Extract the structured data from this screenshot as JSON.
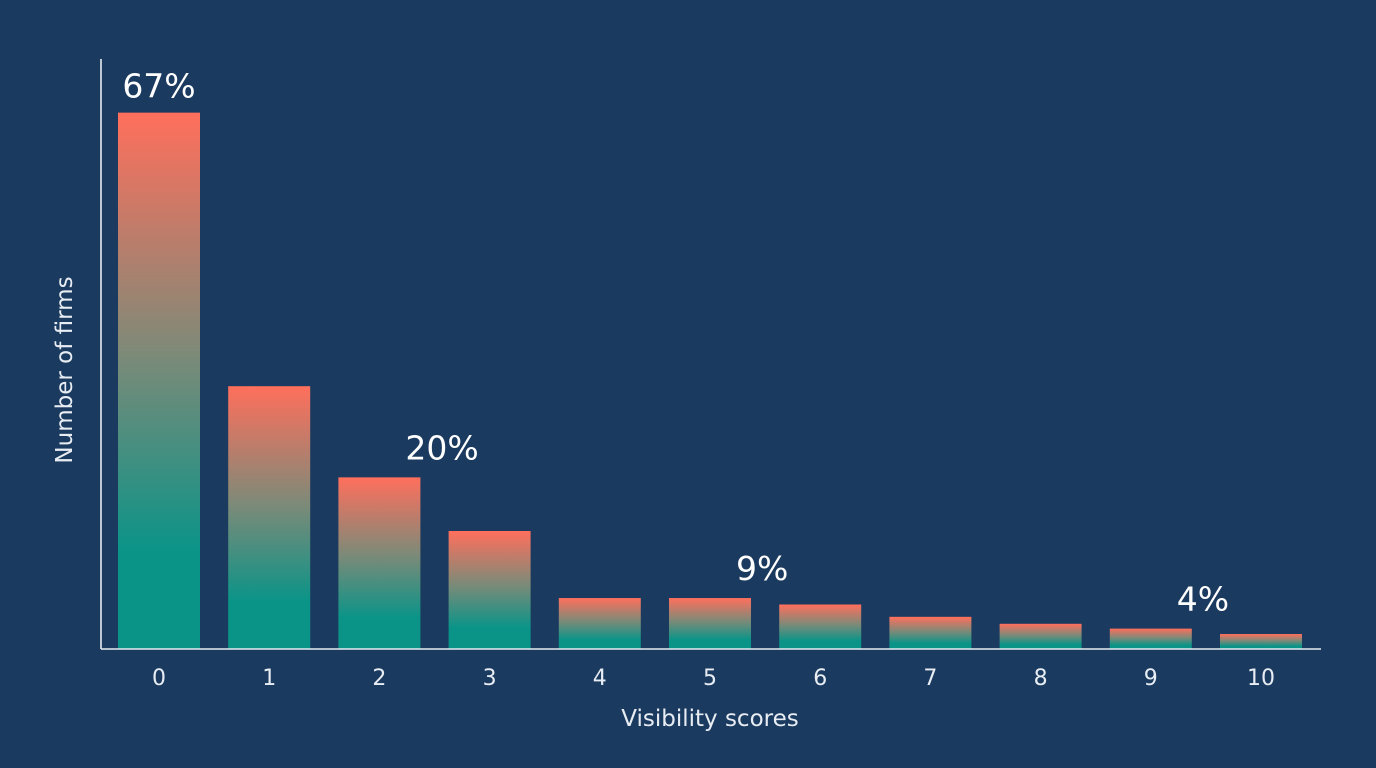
{
  "chart_data": {
    "type": "bar",
    "categories": [
      "0",
      "1",
      "2",
      "3",
      "4",
      "5",
      "6",
      "7",
      "8",
      "9",
      "10"
    ],
    "values": [
      100,
      49,
      32,
      22,
      9.5,
      9.5,
      8.3,
      6,
      4.7,
      3.8,
      2.8
    ],
    "xlabel": "Visibility scores",
    "ylabel": "Number of firms",
    "title": "",
    "ylim": [
      0,
      110
    ],
    "grid": false,
    "legend": "none",
    "annotations": [
      {
        "text": "67%",
        "category": "0"
      },
      {
        "text": "20%",
        "category": "2"
      },
      {
        "text": "9%",
        "category": "5"
      },
      {
        "text": "4%",
        "category": "9"
      }
    ],
    "colors": {
      "background": "#1b3a5f",
      "bar_top": "#ff6f5c",
      "bar_bottom": "#0a9488",
      "axis": "#e8edf3",
      "text": "#e8edf3"
    }
  }
}
